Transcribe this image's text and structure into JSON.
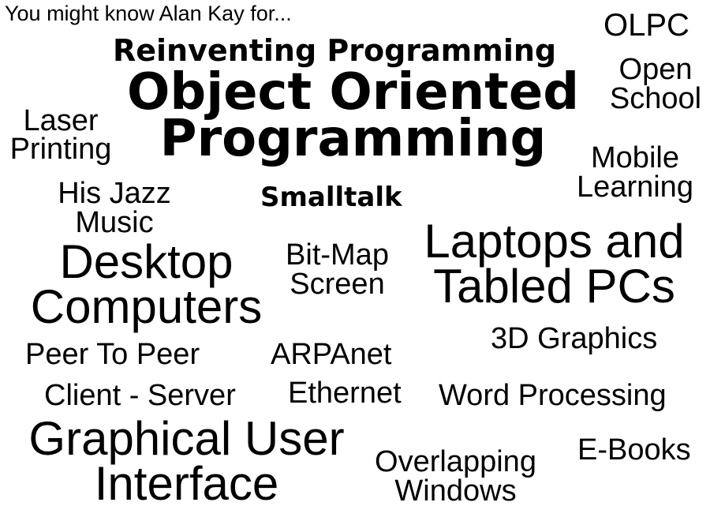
{
  "intro": "You might know Alan Kay for...",
  "words": {
    "olpc": "OLPC",
    "reinventing": "Reinventing Programming",
    "oop_line1": "Object Oriented",
    "oop_line2": "Programming",
    "open_line1": "Open",
    "open_line2": "School",
    "laser_line1": "Laser",
    "laser_line2": "Printing",
    "mobile_line1": "Mobile",
    "mobile_line2": "Learning",
    "jazz_line1": "His Jazz",
    "jazz_line2": "Music",
    "smalltalk": "Smalltalk",
    "desktop_line1": "Desktop",
    "desktop_line2": "Computers",
    "bitmap_line1": "Bit-Map",
    "bitmap_line2": "Screen",
    "laptops_line1": "Laptops and",
    "laptops_line2": "Tabled PCs",
    "graphics3d": "3D Graphics",
    "p2p": "Peer To Peer",
    "arpanet": "ARPAnet",
    "clientserver": "Client - Server",
    "ethernet": "Ethernet",
    "wordproc": "Word Processing",
    "gui_line1": "Graphical User",
    "gui_line2": "Interface",
    "overlap_line1": "Overlapping",
    "overlap_line2": "Windows",
    "ebooks": "E-Books"
  }
}
